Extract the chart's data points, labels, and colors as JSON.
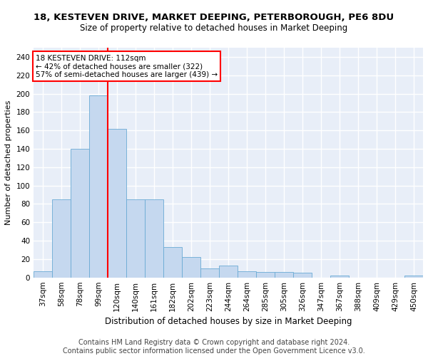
{
  "title1": "18, KESTEVEN DRIVE, MARKET DEEPING, PETERBOROUGH, PE6 8DU",
  "title2": "Size of property relative to detached houses in Market Deeping",
  "xlabel": "Distribution of detached houses by size in Market Deeping",
  "ylabel": "Number of detached properties",
  "footer1": "Contains HM Land Registry data © Crown copyright and database right 2024.",
  "footer2": "Contains public sector information licensed under the Open Government Licence v3.0.",
  "bar_labels": [
    "37sqm",
    "58sqm",
    "78sqm",
    "99sqm",
    "120sqm",
    "140sqm",
    "161sqm",
    "182sqm",
    "202sqm",
    "223sqm",
    "244sqm",
    "264sqm",
    "285sqm",
    "305sqm",
    "326sqm",
    "347sqm",
    "367sqm",
    "388sqm",
    "409sqm",
    "429sqm",
    "450sqm"
  ],
  "bar_values": [
    7,
    85,
    140,
    198,
    162,
    85,
    85,
    33,
    22,
    10,
    13,
    7,
    6,
    6,
    5,
    0,
    2,
    0,
    0,
    0,
    2
  ],
  "bar_color": "#c5d8ef",
  "bar_edge_color": "#6aaad4",
  "red_line_x": 3.5,
  "annotation_line1": "18 KESTEVEN DRIVE: 112sqm",
  "annotation_line2": "← 42% of detached houses are smaller (322)",
  "annotation_line3": "57% of semi-detached houses are larger (439) →",
  "ylim": [
    0,
    250
  ],
  "yticks": [
    0,
    20,
    40,
    60,
    80,
    100,
    120,
    140,
    160,
    180,
    200,
    220,
    240
  ],
  "plot_bg_color": "#e8eef8",
  "grid_color": "#ffffff",
  "fig_bg_color": "#ffffff",
  "title1_fontsize": 9.5,
  "title2_fontsize": 8.5,
  "xlabel_fontsize": 8.5,
  "ylabel_fontsize": 8,
  "tick_fontsize": 7.5,
  "footer_fontsize": 7,
  "annot_fontsize": 7.5
}
